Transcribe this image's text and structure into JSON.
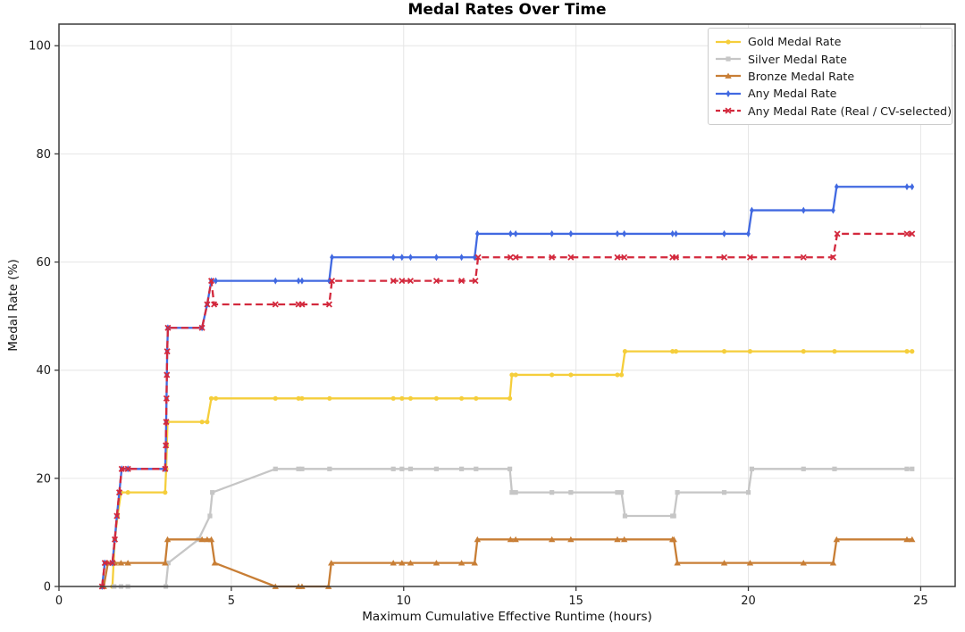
{
  "chart_data": {
    "type": "line",
    "title": "Medal Rates Over Time",
    "xlabel": "Maximum Cumulative Effective Runtime (hours)",
    "ylabel": "Medal Rate (%)",
    "xlim": [
      0,
      26
    ],
    "ylim": [
      0,
      104
    ],
    "xticks": [
      0,
      5,
      10,
      15,
      20,
      25
    ],
    "yticks": [
      0,
      20,
      40,
      60,
      80,
      100
    ],
    "grid": true,
    "legend_position": "upper right",
    "colors": {
      "gold": "#F5CE3B",
      "silver": "#C6C6C6",
      "bronze": "#C87E35",
      "any": "#4169E1",
      "any_real_cv": "#D3293D",
      "grid": "#E6E6E6",
      "spine": "#3C3C3C"
    },
    "series": [
      {
        "name": "Gold Medal Rate",
        "color": "#F5CE3B",
        "dash": "solid",
        "marker": "circle",
        "points": [
          [
            1.55,
            0
          ],
          [
            1.62,
            8.7
          ],
          [
            1.7,
            13.04
          ],
          [
            1.8,
            17.39
          ],
          [
            2.0,
            17.39
          ],
          [
            3.08,
            17.39
          ],
          [
            3.11,
            21.74
          ],
          [
            3.13,
            26.09
          ],
          [
            3.15,
            30.43
          ],
          [
            4.15,
            30.43
          ],
          [
            4.3,
            30.43
          ],
          [
            4.42,
            34.78
          ],
          [
            4.55,
            34.78
          ],
          [
            6.28,
            34.78
          ],
          [
            6.95,
            34.78
          ],
          [
            7.05,
            34.78
          ],
          [
            7.85,
            34.78
          ],
          [
            9.7,
            34.78
          ],
          [
            9.95,
            34.78
          ],
          [
            10.2,
            34.78
          ],
          [
            10.95,
            34.78
          ],
          [
            11.68,
            34.78
          ],
          [
            12.1,
            34.78
          ],
          [
            13.08,
            34.78
          ],
          [
            13.14,
            39.13
          ],
          [
            13.25,
            39.13
          ],
          [
            14.3,
            39.13
          ],
          [
            14.85,
            39.13
          ],
          [
            16.2,
            39.13
          ],
          [
            16.32,
            39.13
          ],
          [
            16.42,
            43.48
          ],
          [
            17.8,
            43.48
          ],
          [
            17.9,
            43.48
          ],
          [
            19.3,
            43.48
          ],
          [
            20.05,
            43.48
          ],
          [
            21.6,
            43.48
          ],
          [
            22.5,
            43.48
          ],
          [
            24.6,
            43.48
          ],
          [
            24.75,
            43.48
          ]
        ]
      },
      {
        "name": "Silver Medal Rate",
        "color": "#C6C6C6",
        "dash": "solid",
        "marker": "square",
        "points": [
          [
            1.6,
            0
          ],
          [
            1.8,
            0
          ],
          [
            2.0,
            0
          ],
          [
            3.1,
            0
          ],
          [
            3.17,
            4.35
          ],
          [
            4.05,
            8.7
          ],
          [
            4.38,
            13.04
          ],
          [
            4.45,
            17.39
          ],
          [
            6.28,
            21.74
          ],
          [
            6.95,
            21.74
          ],
          [
            7.05,
            21.74
          ],
          [
            7.85,
            21.74
          ],
          [
            9.7,
            21.74
          ],
          [
            9.95,
            21.74
          ],
          [
            10.2,
            21.74
          ],
          [
            10.95,
            21.74
          ],
          [
            11.68,
            21.74
          ],
          [
            12.1,
            21.74
          ],
          [
            13.08,
            21.74
          ],
          [
            13.14,
            17.39
          ],
          [
            13.25,
            17.39
          ],
          [
            14.3,
            17.39
          ],
          [
            14.85,
            17.39
          ],
          [
            16.2,
            17.39
          ],
          [
            16.32,
            17.39
          ],
          [
            16.42,
            13.04
          ],
          [
            17.8,
            13.04
          ],
          [
            17.84,
            13.04
          ],
          [
            17.94,
            17.39
          ],
          [
            19.3,
            17.39
          ],
          [
            20.0,
            17.39
          ],
          [
            20.1,
            21.74
          ],
          [
            21.6,
            21.74
          ],
          [
            22.5,
            21.74
          ],
          [
            24.6,
            21.74
          ],
          [
            24.75,
            21.74
          ]
        ]
      },
      {
        "name": "Bronze Medal Rate",
        "color": "#C87E35",
        "dash": "solid",
        "marker": "triangle",
        "points": [
          [
            1.3,
            0
          ],
          [
            1.42,
            4.35
          ],
          [
            1.55,
            4.35
          ],
          [
            1.62,
            4.35
          ],
          [
            1.8,
            4.35
          ],
          [
            2.0,
            4.35
          ],
          [
            3.08,
            4.35
          ],
          [
            3.15,
            8.7
          ],
          [
            4.15,
            8.7
          ],
          [
            4.3,
            8.7
          ],
          [
            4.42,
            8.7
          ],
          [
            4.52,
            4.35
          ],
          [
            6.28,
            0
          ],
          [
            6.95,
            0
          ],
          [
            7.05,
            0
          ],
          [
            7.82,
            0
          ],
          [
            7.9,
            4.35
          ],
          [
            9.7,
            4.35
          ],
          [
            9.95,
            4.35
          ],
          [
            10.2,
            4.35
          ],
          [
            10.95,
            4.35
          ],
          [
            11.68,
            4.35
          ],
          [
            12.06,
            4.35
          ],
          [
            12.14,
            8.7
          ],
          [
            13.1,
            8.7
          ],
          [
            13.25,
            8.7
          ],
          [
            14.3,
            8.7
          ],
          [
            14.85,
            8.7
          ],
          [
            16.2,
            8.7
          ],
          [
            16.4,
            8.7
          ],
          [
            17.8,
            8.7
          ],
          [
            17.84,
            8.7
          ],
          [
            17.94,
            4.35
          ],
          [
            19.3,
            4.35
          ],
          [
            20.05,
            4.35
          ],
          [
            21.6,
            4.35
          ],
          [
            22.46,
            4.35
          ],
          [
            22.56,
            8.7
          ],
          [
            24.6,
            8.7
          ],
          [
            24.75,
            8.7
          ]
        ]
      },
      {
        "name": "Any Medal Rate",
        "color": "#4169E1",
        "dash": "solid",
        "marker": "thin-diamond",
        "points": [
          [
            1.25,
            0
          ],
          [
            1.33,
            4.35
          ],
          [
            1.55,
            4.35
          ],
          [
            1.62,
            8.7
          ],
          [
            1.68,
            13.04
          ],
          [
            1.75,
            17.39
          ],
          [
            1.82,
            21.74
          ],
          [
            2.0,
            21.74
          ],
          [
            3.08,
            21.74
          ],
          [
            3.1,
            26.09
          ],
          [
            3.11,
            30.43
          ],
          [
            3.12,
            34.78
          ],
          [
            3.13,
            39.13
          ],
          [
            3.14,
            43.48
          ],
          [
            3.16,
            47.83
          ],
          [
            4.15,
            47.83
          ],
          [
            4.3,
            52.17
          ],
          [
            4.42,
            56.52
          ],
          [
            4.55,
            56.52
          ],
          [
            6.28,
            56.52
          ],
          [
            6.95,
            56.52
          ],
          [
            7.05,
            56.52
          ],
          [
            7.84,
            56.52
          ],
          [
            7.92,
            60.87
          ],
          [
            9.7,
            60.87
          ],
          [
            9.95,
            60.87
          ],
          [
            10.2,
            60.87
          ],
          [
            10.95,
            60.87
          ],
          [
            11.68,
            60.87
          ],
          [
            12.06,
            60.87
          ],
          [
            12.14,
            65.22
          ],
          [
            13.1,
            65.22
          ],
          [
            13.25,
            65.22
          ],
          [
            14.3,
            65.22
          ],
          [
            14.85,
            65.22
          ],
          [
            16.2,
            65.22
          ],
          [
            16.4,
            65.22
          ],
          [
            17.8,
            65.22
          ],
          [
            17.9,
            65.22
          ],
          [
            19.3,
            65.22
          ],
          [
            20.0,
            65.22
          ],
          [
            20.1,
            69.57
          ],
          [
            21.6,
            69.57
          ],
          [
            22.46,
            69.57
          ],
          [
            22.56,
            73.91
          ],
          [
            24.6,
            73.91
          ],
          [
            24.75,
            73.91
          ]
        ]
      },
      {
        "name": "Any Medal Rate (Real / CV-selected)",
        "color": "#D3293D",
        "dash": "dashed",
        "marker": "x",
        "points": [
          [
            1.25,
            0
          ],
          [
            1.33,
            4.35
          ],
          [
            1.55,
            4.35
          ],
          [
            1.62,
            8.7
          ],
          [
            1.68,
            13.04
          ],
          [
            1.75,
            17.39
          ],
          [
            1.82,
            21.74
          ],
          [
            2.0,
            21.74
          ],
          [
            3.08,
            21.74
          ],
          [
            3.1,
            26.09
          ],
          [
            3.11,
            30.43
          ],
          [
            3.12,
            34.78
          ],
          [
            3.13,
            39.13
          ],
          [
            3.14,
            43.48
          ],
          [
            3.16,
            47.83
          ],
          [
            4.15,
            47.83
          ],
          [
            4.3,
            52.17
          ],
          [
            4.42,
            56.52
          ],
          [
            4.5,
            52.17
          ],
          [
            6.28,
            52.17
          ],
          [
            6.95,
            52.17
          ],
          [
            7.05,
            52.17
          ],
          [
            7.84,
            52.17
          ],
          [
            7.92,
            56.52
          ],
          [
            9.7,
            56.52
          ],
          [
            9.95,
            56.52
          ],
          [
            10.2,
            56.52
          ],
          [
            10.95,
            56.52
          ],
          [
            11.68,
            56.52
          ],
          [
            12.08,
            56.52
          ],
          [
            12.16,
            60.87
          ],
          [
            13.1,
            60.87
          ],
          [
            13.25,
            60.87
          ],
          [
            14.3,
            60.87
          ],
          [
            14.85,
            60.87
          ],
          [
            16.2,
            60.87
          ],
          [
            16.4,
            60.87
          ],
          [
            17.8,
            60.87
          ],
          [
            17.9,
            60.87
          ],
          [
            19.3,
            60.87
          ],
          [
            20.05,
            60.87
          ],
          [
            21.6,
            60.87
          ],
          [
            22.46,
            60.87
          ],
          [
            22.58,
            65.22
          ],
          [
            24.6,
            65.22
          ],
          [
            24.75,
            65.22
          ]
        ]
      }
    ]
  }
}
